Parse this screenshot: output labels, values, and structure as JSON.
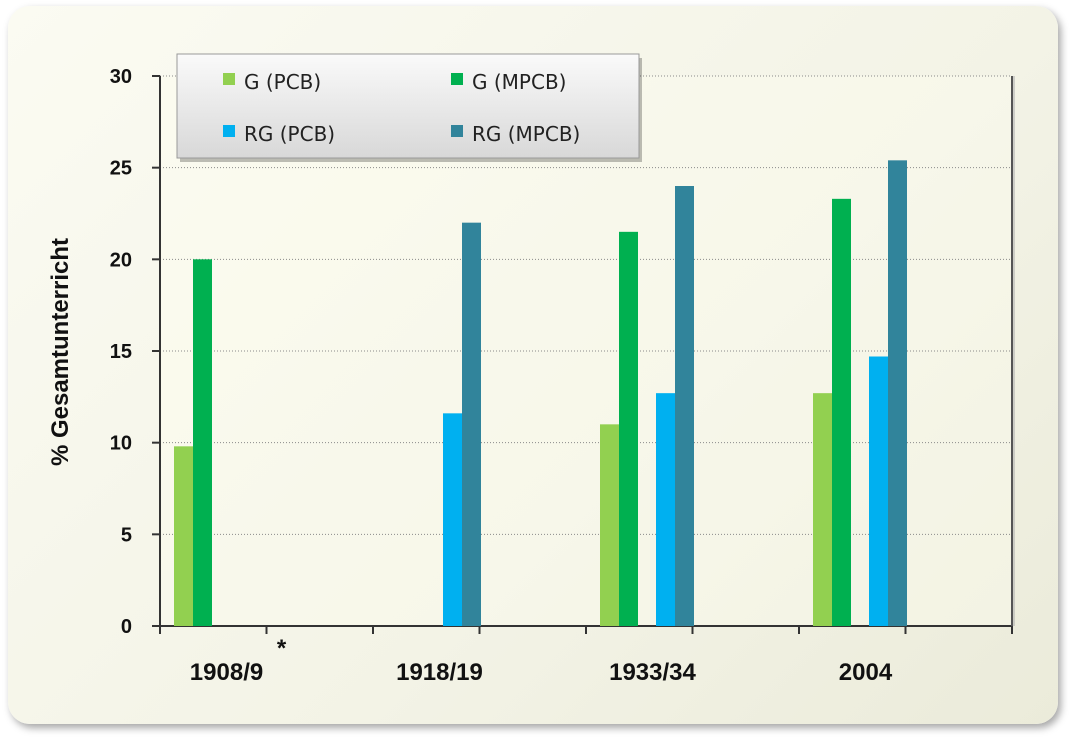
{
  "chart_data": {
    "type": "bar",
    "ylabel": "% Gesamtunterricht",
    "xlabel": "",
    "ylim": [
      0,
      30
    ],
    "yticks": [
      0,
      5,
      10,
      15,
      20,
      25,
      30
    ],
    "grid": "horizontal dotted",
    "legend_position": "top-left",
    "categories": [
      "1908/9",
      "1918/19",
      "1933/34",
      "2004"
    ],
    "category_note": {
      "index": 0,
      "marker": "*"
    },
    "series": [
      {
        "name": "G (PCB)",
        "color": "#92d050",
        "values": [
          9.8,
          null,
          11.0,
          12.7
        ]
      },
      {
        "name": "G (MPCB)",
        "color": "#00b050",
        "values": [
          20.0,
          null,
          21.5,
          23.3
        ]
      },
      {
        "name": "RG (PCB)",
        "color": "#00b0f0",
        "values": [
          null,
          11.6,
          12.7,
          14.7
        ]
      },
      {
        "name": "RG (MPCB)",
        "color": "#31849b",
        "values": [
          null,
          22.0,
          24.0,
          25.4
        ]
      }
    ]
  }
}
